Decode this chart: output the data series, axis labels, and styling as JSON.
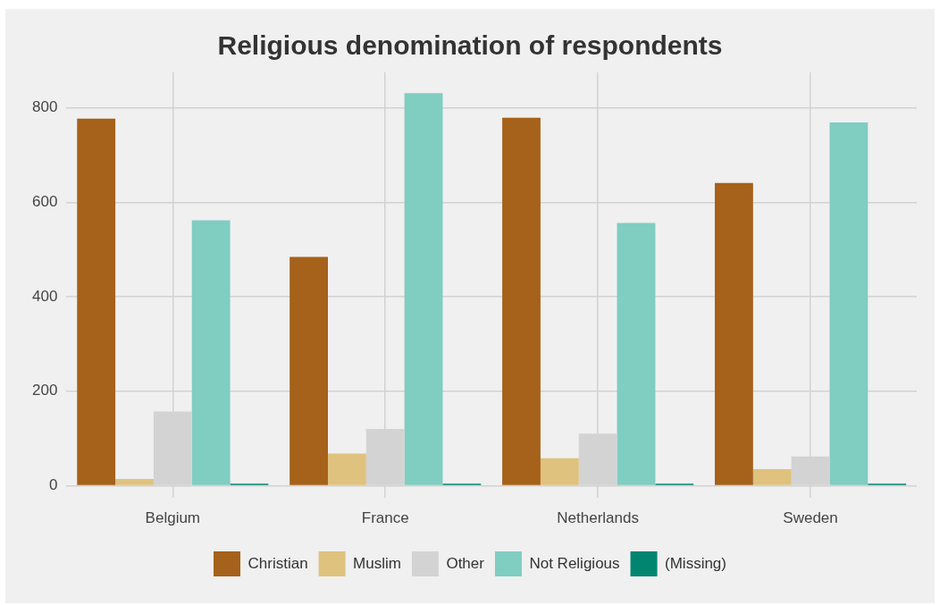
{
  "chart_data": {
    "type": "bar",
    "title": "Religious denomination of respondents",
    "categories": [
      "Belgium",
      "France",
      "Netherlands",
      "Sweden"
    ],
    "series": [
      {
        "name": "Christian",
        "color": "#a6611a",
        "values": [
          777,
          484,
          779,
          641
        ]
      },
      {
        "name": "Muslim",
        "color": "#dfc27d",
        "values": [
          14,
          68,
          58,
          35
        ]
      },
      {
        "name": "Other",
        "color": "#d3d3d3",
        "values": [
          157,
          120,
          110,
          62
        ]
      },
      {
        "name": "Not Religious",
        "color": "#80cdc1",
        "values": [
          562,
          831,
          556,
          769
        ]
      },
      {
        "name": "(Missing)",
        "color": "#018571",
        "values": [
          4,
          4,
          4,
          4
        ]
      }
    ],
    "ylim": [
      -25,
      875
    ],
    "yticks": [
      0,
      200,
      400,
      600,
      800
    ],
    "grid": true,
    "legend": "bottom"
  }
}
